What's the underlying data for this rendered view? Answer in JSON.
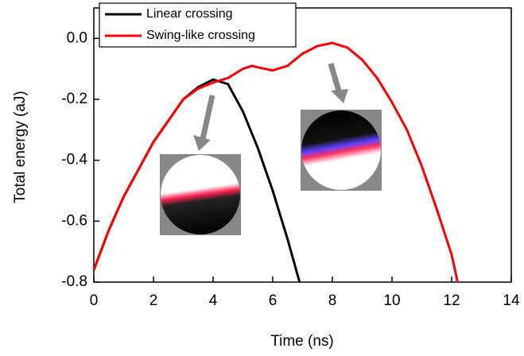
{
  "chart_data": {
    "type": "line",
    "x_label": "Time (ns)",
    "y_label": "Total energy (aJ)",
    "xlim": [
      0,
      14
    ],
    "xticks": [
      0,
      2,
      4,
      6,
      8,
      10,
      12,
      14
    ],
    "ylim": [
      -0.8,
      0.1
    ],
    "yticks": [
      {
        "value": -0.8,
        "label": "-0.8"
      },
      {
        "value": -0.6,
        "label": "-0.6"
      },
      {
        "value": -0.4,
        "label": "-0.4"
      },
      {
        "value": -0.2,
        "label": "-0.2"
      },
      {
        "value": 0,
        "label": "0.0"
      }
    ],
    "legend": "upper left",
    "series": [
      {
        "name": "Linear crossing",
        "color": "#000000",
        "x": [
          0,
          0.5,
          1,
          1.5,
          2,
          2.5,
          3,
          3.5,
          4,
          4.5,
          5,
          5.5,
          6,
          6.5,
          6.9
        ],
        "values": [
          -0.76,
          -0.63,
          -0.52,
          -0.43,
          -0.34,
          -0.27,
          -0.2,
          -0.16,
          -0.135,
          -0.15,
          -0.24,
          -0.36,
          -0.5,
          -0.66,
          -0.8
        ]
      },
      {
        "name": "Swing-like crossing",
        "color": "#ff0000",
        "x": [
          0,
          0.5,
          1,
          1.5,
          2,
          2.5,
          3,
          3.5,
          4,
          4.5,
          5,
          5.3,
          5.5,
          6,
          6.5,
          7,
          7.5,
          8,
          8.5,
          9,
          9.5,
          10,
          10.5,
          11,
          11.5,
          12,
          12.2
        ],
        "values": [
          -0.76,
          -0.63,
          -0.52,
          -0.43,
          -0.34,
          -0.27,
          -0.2,
          -0.165,
          -0.145,
          -0.13,
          -0.1,
          -0.09,
          -0.095,
          -0.105,
          -0.09,
          -0.05,
          -0.025,
          -0.015,
          -0.03,
          -0.07,
          -0.13,
          -0.21,
          -0.3,
          -0.42,
          -0.56,
          -0.71,
          -0.8
        ]
      }
    ]
  }
}
